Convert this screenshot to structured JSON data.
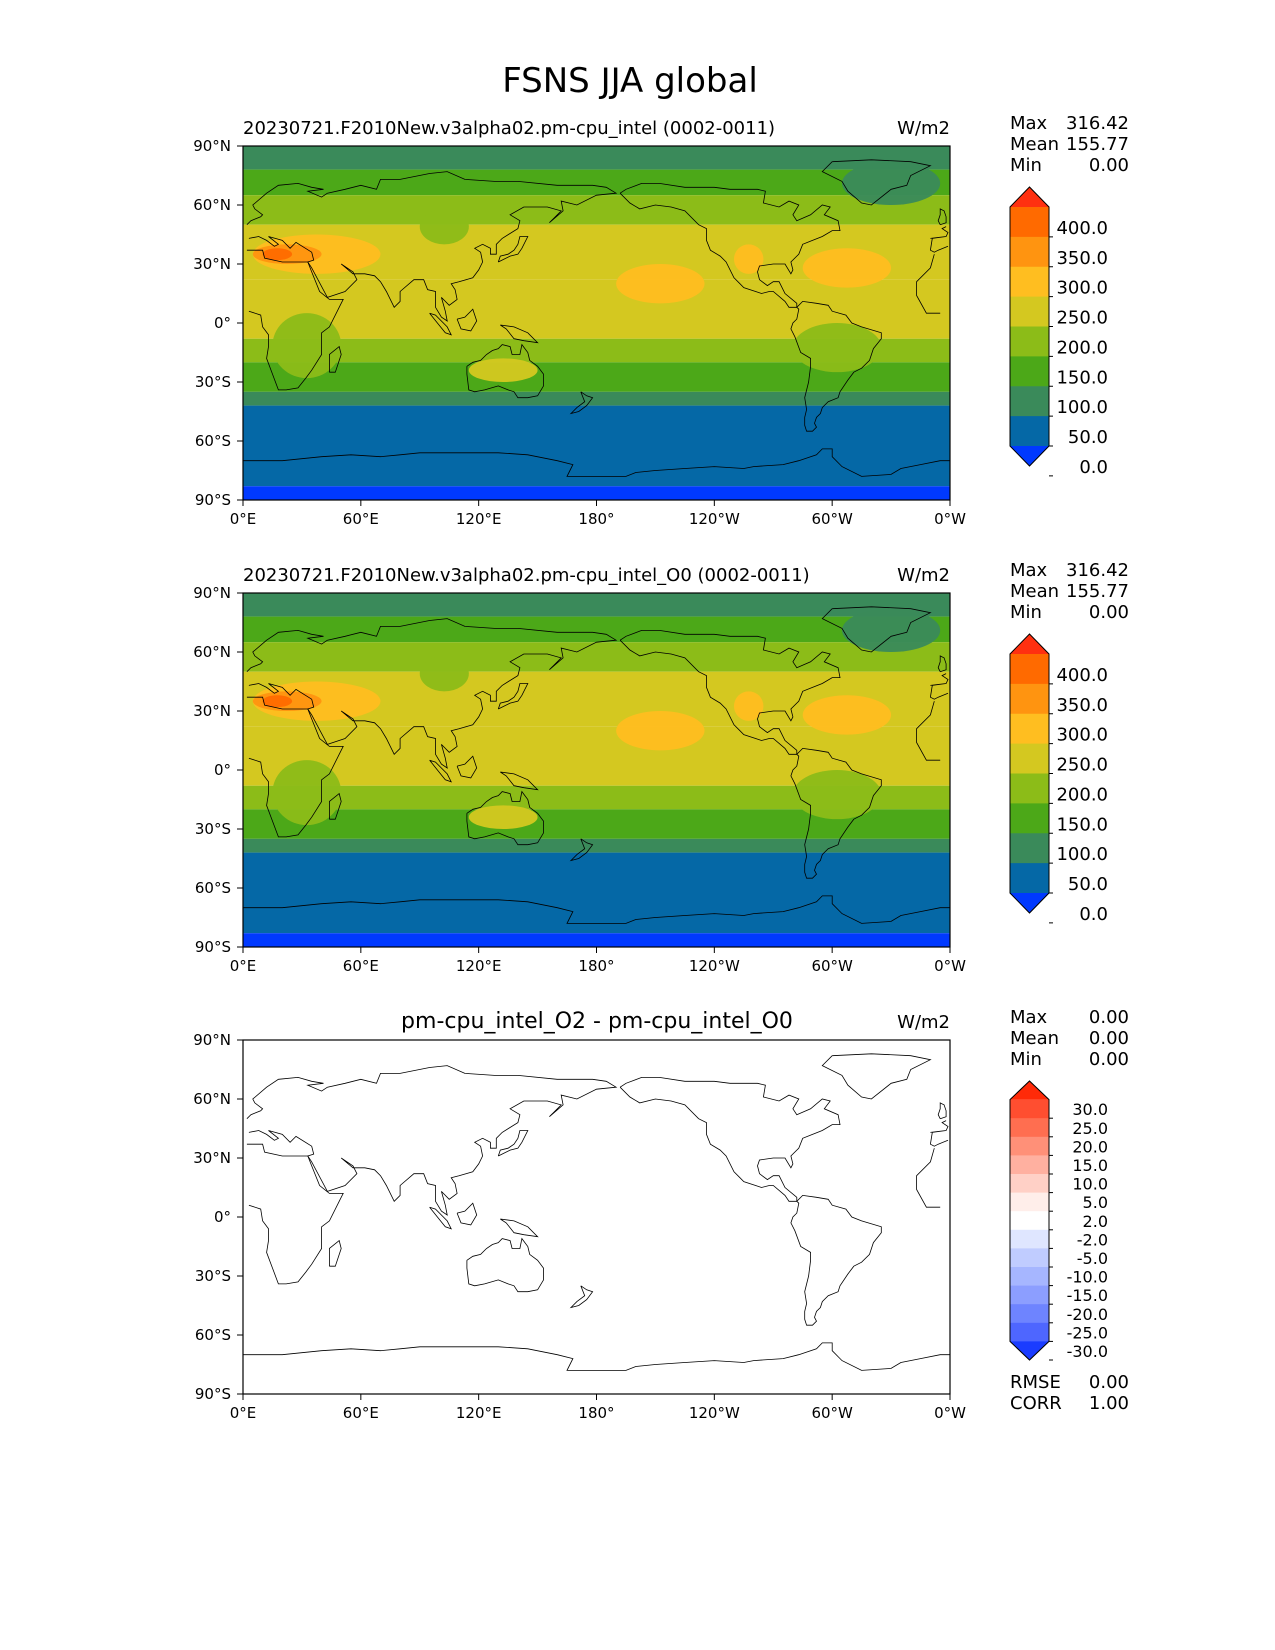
{
  "title": "FSNS JJA global",
  "chart_data": [
    {
      "type": "heatmap",
      "title": "20230721.F2010New.v3alpha02.pm-cpu_intel (0002-0011)",
      "units": "W/m2",
      "stats": [
        {
          "label": "Max",
          "value": "316.42"
        },
        {
          "label": "Mean",
          "value": "155.77"
        },
        {
          "label": "Min",
          "value": "0.00"
        }
      ],
      "xticks": [
        "0°E",
        "60°E",
        "120°E",
        "180°",
        "120°W",
        "60°W",
        "0°W"
      ],
      "yticks": [
        "90°N",
        "60°N",
        "30°N",
        "0°",
        "30°S",
        "60°S",
        "90°S"
      ],
      "xlim": [
        0,
        360
      ],
      "ylim": [
        -90,
        90
      ],
      "colorbar": {
        "levels": [
          "400.0",
          "350.0",
          "300.0",
          "250.0",
          "200.0",
          "150.0",
          "100.0",
          "50.0",
          "0.0"
        ],
        "colors": [
          "#ff3010",
          "#ff6a00",
          "#ff9410",
          "#ffbe20",
          "#d4c820",
          "#8cbc18",
          "#4ca818",
          "#3a8a5a",
          "#0568a6",
          "#0039ff"
        ]
      },
      "zonal_bands": [
        {
          "lat": [
            78,
            90
          ],
          "color": "#3a8a5a"
        },
        {
          "lat": [
            65,
            78
          ],
          "color": "#4ca818"
        },
        {
          "lat": [
            50,
            65
          ],
          "color": "#8cbc18"
        },
        {
          "lat": [
            22,
            50
          ],
          "color": "#d4c820"
        },
        {
          "lat": [
            -8,
            22
          ],
          "color": "#d4c820"
        },
        {
          "lat": [
            -20,
            -8
          ],
          "color": "#8cbc18"
        },
        {
          "lat": [
            -35,
            -20
          ],
          "color": "#4ca818"
        },
        {
          "lat": [
            -42,
            -35
          ],
          "color": "#3a8a5a"
        },
        {
          "lat": [
            -83,
            -42
          ],
          "color": "#0568a6"
        },
        {
          "lat": [
            -90,
            -83
          ],
          "color": "#0039ff"
        }
      ],
      "patches": [
        {
          "lon": [
            190,
            235
          ],
          "lat": [
            10,
            30
          ],
          "color": "#ffbe20"
        },
        {
          "lon": [
            285,
            330
          ],
          "lat": [
            18,
            38
          ],
          "color": "#ffbe20"
        },
        {
          "lon": [
            5,
            70
          ],
          "lat": [
            25,
            45
          ],
          "color": "#ffbe20"
        },
        {
          "lon": [
            5,
            40
          ],
          "lat": [
            30,
            40
          ],
          "color": "#ff9410"
        },
        {
          "lon": [
            10,
            25
          ],
          "lat": [
            32,
            38
          ],
          "color": "#ff6a00"
        },
        {
          "lon": [
            250,
            265
          ],
          "lat": [
            25,
            40
          ],
          "color": "#ffbe20"
        },
        {
          "lon": [
            115,
            150
          ],
          "lat": [
            -30,
            -18
          ],
          "color": "#d4c820"
        },
        {
          "lon": [
            15,
            50
          ],
          "lat": [
            -28,
            5
          ],
          "color": "#8cbc18"
        },
        {
          "lon": [
            280,
            325
          ],
          "lat": [
            -25,
            0
          ],
          "color": "#8cbc18"
        },
        {
          "lon": [
            305,
            355
          ],
          "lat": [
            60,
            82
          ],
          "color": "#3a8a5a"
        },
        {
          "lon": [
            90,
            115
          ],
          "lat": [
            40,
            58
          ],
          "color": "#8cbc18"
        }
      ]
    },
    {
      "type": "heatmap",
      "title": "20230721.F2010New.v3alpha02.pm-cpu_intel_O0 (0002-0011)",
      "units": "W/m2",
      "stats": [
        {
          "label": "Max",
          "value": "316.42"
        },
        {
          "label": "Mean",
          "value": "155.77"
        },
        {
          "label": "Min",
          "value": "0.00"
        }
      ],
      "xticks": [
        "0°E",
        "60°E",
        "120°E",
        "180°",
        "120°W",
        "60°W",
        "0°W"
      ],
      "yticks": [
        "90°N",
        "60°N",
        "30°N",
        "0°",
        "30°S",
        "60°S",
        "90°S"
      ],
      "xlim": [
        0,
        360
      ],
      "ylim": [
        -90,
        90
      ],
      "colorbar": {
        "levels": [
          "400.0",
          "350.0",
          "300.0",
          "250.0",
          "200.0",
          "150.0",
          "100.0",
          "50.0",
          "0.0"
        ],
        "colors": [
          "#ff3010",
          "#ff6a00",
          "#ff9410",
          "#ffbe20",
          "#d4c820",
          "#8cbc18",
          "#4ca818",
          "#3a8a5a",
          "#0568a6",
          "#0039ff"
        ]
      },
      "zonal_bands": [
        {
          "lat": [
            78,
            90
          ],
          "color": "#3a8a5a"
        },
        {
          "lat": [
            65,
            78
          ],
          "color": "#4ca818"
        },
        {
          "lat": [
            50,
            65
          ],
          "color": "#8cbc18"
        },
        {
          "lat": [
            22,
            50
          ],
          "color": "#d4c820"
        },
        {
          "lat": [
            -8,
            22
          ],
          "color": "#d4c820"
        },
        {
          "lat": [
            -20,
            -8
          ],
          "color": "#8cbc18"
        },
        {
          "lat": [
            -35,
            -20
          ],
          "color": "#4ca818"
        },
        {
          "lat": [
            -42,
            -35
          ],
          "color": "#3a8a5a"
        },
        {
          "lat": [
            -83,
            -42
          ],
          "color": "#0568a6"
        },
        {
          "lat": [
            -90,
            -83
          ],
          "color": "#0039ff"
        }
      ],
      "patches": [
        {
          "lon": [
            190,
            235
          ],
          "lat": [
            10,
            30
          ],
          "color": "#ffbe20"
        },
        {
          "lon": [
            285,
            330
          ],
          "lat": [
            18,
            38
          ],
          "color": "#ffbe20"
        },
        {
          "lon": [
            5,
            70
          ],
          "lat": [
            25,
            45
          ],
          "color": "#ffbe20"
        },
        {
          "lon": [
            5,
            40
          ],
          "lat": [
            30,
            40
          ],
          "color": "#ff9410"
        },
        {
          "lon": [
            10,
            25
          ],
          "lat": [
            32,
            38
          ],
          "color": "#ff6a00"
        },
        {
          "lon": [
            250,
            265
          ],
          "lat": [
            25,
            40
          ],
          "color": "#ffbe20"
        },
        {
          "lon": [
            115,
            150
          ],
          "lat": [
            -30,
            -18
          ],
          "color": "#d4c820"
        },
        {
          "lon": [
            15,
            50
          ],
          "lat": [
            -28,
            5
          ],
          "color": "#8cbc18"
        },
        {
          "lon": [
            280,
            325
          ],
          "lat": [
            -25,
            0
          ],
          "color": "#8cbc18"
        },
        {
          "lon": [
            305,
            355
          ],
          "lat": [
            60,
            82
          ],
          "color": "#3a8a5a"
        },
        {
          "lon": [
            90,
            115
          ],
          "lat": [
            40,
            58
          ],
          "color": "#8cbc18"
        }
      ]
    },
    {
      "type": "heatmap",
      "title": "pm-cpu_intel_O2 - pm-cpu_intel_O0",
      "units": "W/m2",
      "stats": [
        {
          "label": "Max",
          "value": "0.00"
        },
        {
          "label": "Mean",
          "value": "0.00"
        },
        {
          "label": "Min",
          "value": "0.00"
        }
      ],
      "extra_stats": [
        {
          "label": "RMSE",
          "value": "0.00"
        },
        {
          "label": "CORR",
          "value": "1.00"
        }
      ],
      "xticks": [
        "0°E",
        "60°E",
        "120°E",
        "180°",
        "120°W",
        "60°W",
        "0°W"
      ],
      "yticks": [
        "90°N",
        "60°N",
        "30°N",
        "0°",
        "30°S",
        "60°S",
        "90°S"
      ],
      "xlim": [
        0,
        360
      ],
      "ylim": [
        -90,
        90
      ],
      "colorbar": {
        "levels": [
          "30.0",
          "25.0",
          "20.0",
          "15.0",
          "10.0",
          "5.0",
          "2.0",
          "-2.0",
          "-5.0",
          "-10.0",
          "-15.0",
          "-20.0",
          "-25.0",
          "-30.0"
        ],
        "colors": [
          "#ff2a08",
          "#ff4e30",
          "#ff6e50",
          "#ff9078",
          "#ffb0a0",
          "#ffd0c6",
          "#ffeeea",
          "#ffffff",
          "#dfe6ff",
          "#c0ccff",
          "#a6b6ff",
          "#8c9eff",
          "#6e84ff",
          "#4e66ff",
          "#1a3cff"
        ]
      },
      "zonal_bands": [],
      "patches": []
    }
  ]
}
